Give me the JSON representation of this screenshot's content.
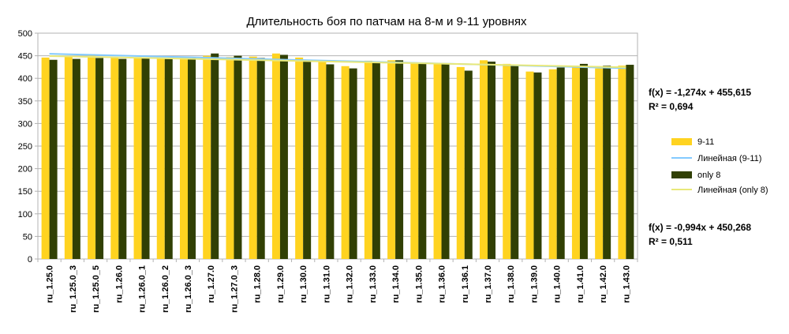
{
  "chart_data": {
    "type": "bar",
    "title": "Длительность боя по патчам на 8-м и 9-11 уровнях",
    "xlabel": "",
    "ylabel": "",
    "ylim": [
      0,
      500
    ],
    "yticks": [
      0,
      50,
      100,
      150,
      200,
      250,
      300,
      350,
      400,
      450,
      500
    ],
    "grid": true,
    "legend_position": "right",
    "categories": [
      "ru_1.25.0",
      "ru_1.25.0_3",
      "ru_1.25.0_5",
      "ru_1.26.0",
      "ru_1.26.0_1",
      "ru_1.26.0_2",
      "ru_1.26.0_3",
      "ru_1.27.0",
      "ru_1.27.0_3",
      "ru_1.28.0",
      "ru_1.29.0",
      "ru_1.30.0",
      "ru_1.31.0",
      "ru_1.32.0",
      "ru_1.33.0",
      "ru_1.34.0",
      "ru_1.35.0",
      "ru_1.36.0",
      "ru_1.36.1",
      "ru_1.37.0",
      "ru_1.38.0",
      "ru_1.39.0",
      "ru_1.40.0",
      "ru_1.41.0",
      "ru_1.42.0",
      "ru_1.43.0"
    ],
    "series": [
      {
        "name": "9-11",
        "color": "#ffd320",
        "values": [
          446,
          448,
          450,
          447,
          447,
          446,
          447,
          450,
          447,
          448,
          455,
          446,
          438,
          427,
          439,
          440,
          435,
          433,
          425,
          440,
          432,
          415,
          420,
          426,
          422,
          428
        ]
      },
      {
        "name": "only 8",
        "color": "#314004",
        "values": [
          441,
          443,
          445,
          443,
          444,
          443,
          445,
          455,
          450,
          445,
          452,
          440,
          431,
          422,
          436,
          440,
          435,
          432,
          417,
          437,
          428,
          413,
          424,
          432,
          428,
          430
        ]
      }
    ],
    "trendlines": [
      {
        "name": "Линейная (9-11)",
        "color": "#83caff",
        "slope": -1.274,
        "intercept": 455.615,
        "equation": "f(x) = -1,274x + 455,615",
        "r2": "R² = 0,694"
      },
      {
        "name": "Линейная (only 8)",
        "color": "#e8e87a",
        "slope": -0.994,
        "intercept": 450.268,
        "equation": "f(x) = -0,994x + 450,268",
        "r2": "R² = 0,511"
      }
    ]
  }
}
